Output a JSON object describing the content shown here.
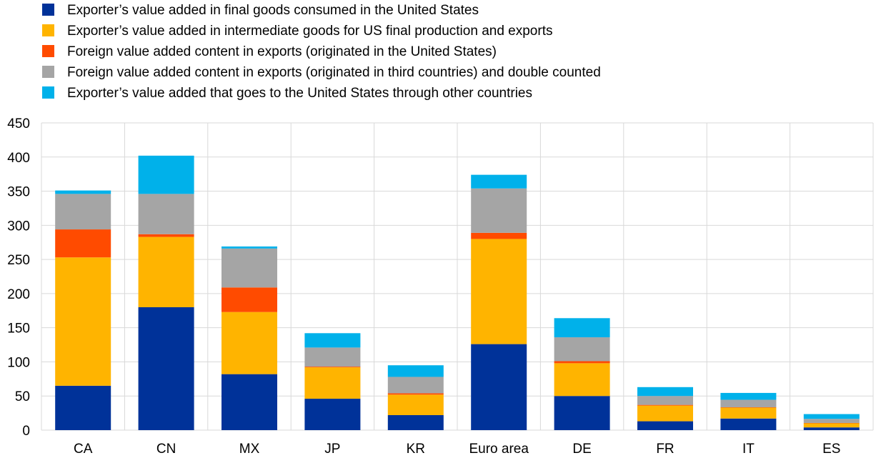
{
  "chart_data": {
    "type": "bar",
    "stacked": true,
    "title": "",
    "xlabel": "",
    "ylabel": "",
    "ylim": [
      0,
      450
    ],
    "yticks": [
      0,
      50,
      100,
      150,
      200,
      250,
      300,
      350,
      400,
      450
    ],
    "grid": true,
    "legend_position": "top-left",
    "categories": [
      "CA",
      "CN",
      "MX",
      "JP",
      "KR",
      "Euro area",
      "DE",
      "FR",
      "IT",
      "ES"
    ],
    "series": [
      {
        "name": "Exporter’s value added in final goods consumed in the United States",
        "color": "#003299",
        "values": [
          65,
          180,
          82,
          46,
          22,
          126,
          50,
          13,
          17,
          4
        ]
      },
      {
        "name": "Exporter’s value added in intermediate goods for US final production and exports",
        "color": "#FFB400",
        "values": [
          188,
          103,
          91,
          46,
          30,
          154,
          48,
          23,
          16,
          6
        ]
      },
      {
        "name": "Foreign value added content in exports (originated in the United States)",
        "color": "#FF4B00",
        "values": [
          41,
          4,
          36,
          1,
          2,
          9,
          3,
          1,
          0.5,
          0.5
        ]
      },
      {
        "name": "Foreign value added content in exports (originated in third countries) and double counted",
        "color": "#A5A5A5",
        "values": [
          52,
          59,
          57,
          28,
          24,
          65,
          35,
          13,
          11,
          6
        ]
      },
      {
        "name": "Exporter’s value added that goes to the United States through other countries",
        "color": "#00B1EA",
        "values": [
          5,
          56,
          3,
          21,
          17,
          20,
          28,
          13,
          10,
          7
        ]
      }
    ]
  }
}
